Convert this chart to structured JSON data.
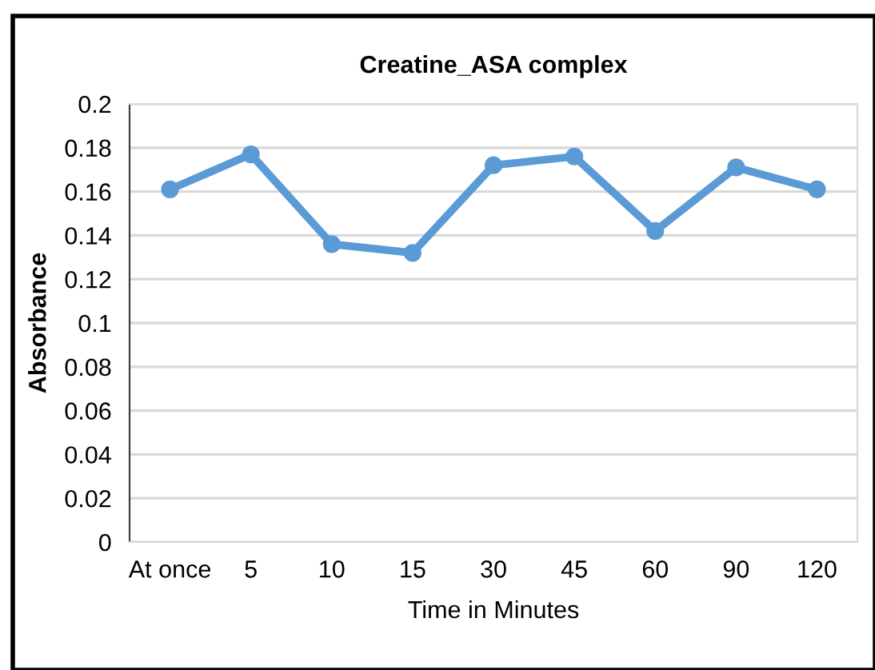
{
  "chart_data": {
    "type": "line",
    "title": "Creatine_ASA complex",
    "xlabel": "Time in Minutes",
    "ylabel": "Absorbance",
    "categories": [
      "At once",
      "5",
      "10",
      "15",
      "30",
      "45",
      "60",
      "90",
      "120"
    ],
    "series": [
      {
        "color": "#5b9bd5",
        "values": [
          0.161,
          0.177,
          0.136,
          0.132,
          0.172,
          0.176,
          0.142,
          0.171,
          0.161
        ]
      }
    ],
    "ylim": [
      0,
      0.2
    ],
    "yticks": [
      0,
      0.02,
      0.04,
      0.06,
      0.08,
      0.1,
      0.12,
      0.14,
      0.16,
      0.18,
      0.2
    ],
    "grid": "y",
    "marker": "circle",
    "line_style": "solid"
  }
}
